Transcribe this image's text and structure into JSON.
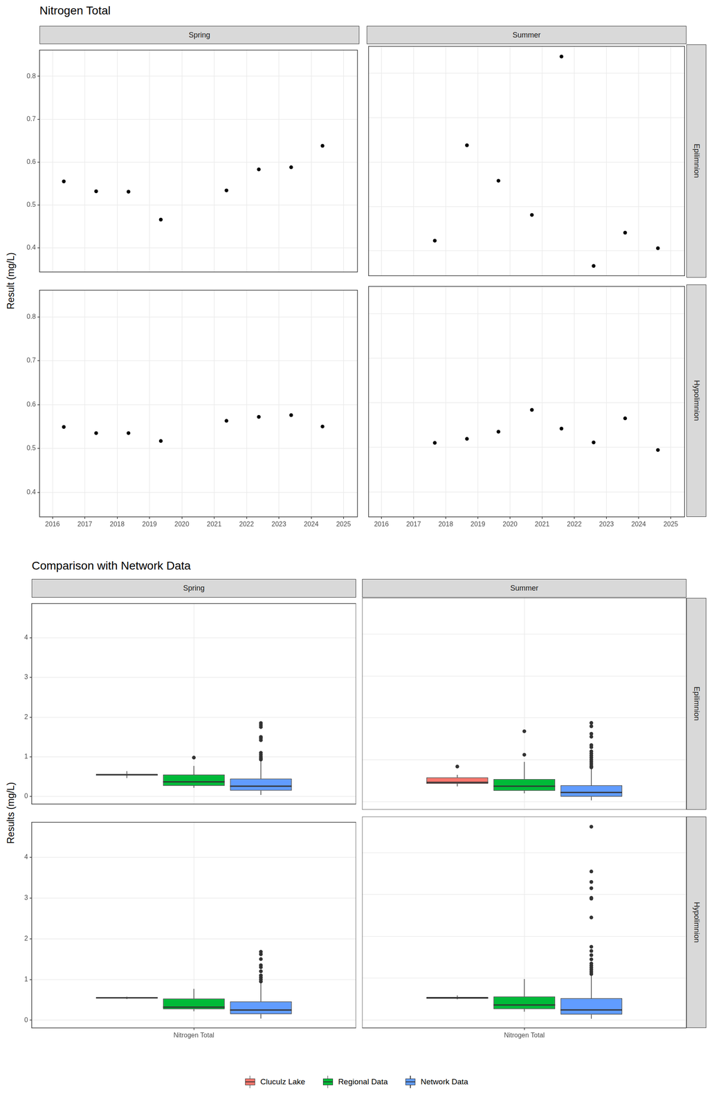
{
  "chart_data": [
    {
      "type": "scatter",
      "title": "Nitrogen Total",
      "ylabel": "Result (mg/L)",
      "columns": [
        "Spring",
        "Summer"
      ],
      "rows": [
        "Epilimnion",
        "Hypolimnion"
      ],
      "color": "#000000",
      "marker": "circle",
      "grid": true,
      "xlim": [
        2015.6,
        2025.43
      ],
      "xticks": [
        2016,
        2017,
        2018,
        2019,
        2020,
        2021,
        2022,
        2023,
        2024,
        2025
      ],
      "ylim": [
        0.344,
        0.861
      ],
      "yticks": [
        0.4,
        0.5,
        0.6,
        0.7,
        0.8
      ],
      "panels": [
        {
          "column": "Spring",
          "row": "Epilimnion",
          "x": [
            2016.35,
            2017.35,
            2018.35,
            2019.35,
            2021.38,
            2022.38,
            2023.38,
            2024.35
          ],
          "values": [
            0.555,
            0.532,
            0.531,
            0.466,
            0.534,
            0.583,
            0.588,
            0.638
          ]
        },
        {
          "column": "Summer",
          "row": "Epilimnion",
          "x": [
            2017.66,
            2018.66,
            2019.64,
            2020.68,
            2021.6,
            2022.6,
            2023.58,
            2024.6
          ],
          "values": [
            0.423,
            0.638,
            0.558,
            0.481,
            0.838,
            0.366,
            0.441,
            0.406
          ]
        },
        {
          "column": "Spring",
          "row": "Hypolimnion",
          "x": [
            2016.35,
            2017.35,
            2018.35,
            2019.35,
            2021.38,
            2022.38,
            2023.38,
            2024.35
          ],
          "values": [
            0.549,
            0.535,
            0.535,
            0.517,
            0.563,
            0.572,
            0.576,
            0.55
          ]
        },
        {
          "column": "Summer",
          "row": "Hypolimnion",
          "x": [
            2017.66,
            2018.66,
            2019.64,
            2020.68,
            2021.6,
            2022.6,
            2023.58,
            2024.6
          ],
          "values": [
            0.51,
            0.519,
            0.535,
            0.584,
            0.542,
            0.511,
            0.565,
            0.494
          ]
        }
      ]
    },
    {
      "type": "box",
      "title": "Comparison with Network Data",
      "ylabel": "Results (mg/L)",
      "columns": [
        "Spring",
        "Summer"
      ],
      "rows": [
        "Epilimnion",
        "Hypolimnion"
      ],
      "categories": [
        "Nitrogen Total"
      ],
      "legend": "bottom",
      "grid": true,
      "series": [
        {
          "name": "Cluculz Lake",
          "color": "#F8766D"
        },
        {
          "name": "Regional Data",
          "color": "#00BA38"
        },
        {
          "name": "Network Data",
          "color": "#619CFF"
        }
      ],
      "ylim": [
        -0.19,
        4.86
      ],
      "yticks": [
        0,
        1,
        2,
        3,
        4
      ],
      "panels": [
        {
          "column": "Spring",
          "row": "Epilimnion",
          "boxes": [
            {
              "q1": 0.53,
              "median": 0.545,
              "q3": 0.57,
              "whisker_low": 0.466,
              "whisker_high": 0.638,
              "outliers": []
            },
            {
              "q1": 0.27,
              "median": 0.37,
              "q3": 0.55,
              "whisker_low": 0.22,
              "whisker_high": 0.77,
              "outliers": [
                0.98
              ]
            },
            {
              "q1": 0.15,
              "median": 0.26,
              "q3": 0.45,
              "whisker_low": 0.04,
              "whisker_high": 0.9,
              "outliers": [
                0.93,
                0.96,
                1.0,
                1.05,
                1.1,
                1.42,
                1.47,
                1.5,
                1.75,
                1.8,
                1.85
              ]
            }
          ]
        },
        {
          "column": "Summer",
          "row": "Epilimnion",
          "boxes": [
            {
              "q1": 0.43,
              "median": 0.46,
              "q3": 0.58,
              "whisker_low": 0.366,
              "whisker_high": 0.64,
              "outliers": [
                0.838
              ]
            },
            {
              "q1": 0.26,
              "median": 0.37,
              "q3": 0.54,
              "whisker_low": 0.2,
              "whisker_high": 0.95,
              "outliers": [
                1.12,
                1.68
              ]
            },
            {
              "q1": 0.12,
              "median": 0.22,
              "q3": 0.39,
              "whisker_low": 0.03,
              "whisker_high": 0.8,
              "outliers": [
                0.82,
                0.85,
                0.9,
                0.95,
                1.0,
                1.05,
                1.1,
                1.15,
                1.2,
                1.3,
                1.35,
                1.55,
                1.62,
                1.8,
                1.88
              ]
            }
          ]
        },
        {
          "column": "Spring",
          "row": "Hypolimnion",
          "boxes": [
            {
              "q1": 0.535,
              "median": 0.549,
              "q3": 0.566,
              "whisker_low": 0.517,
              "whisker_high": 0.576,
              "outliers": []
            },
            {
              "q1": 0.27,
              "median": 0.32,
              "q3": 0.53,
              "whisker_low": 0.22,
              "whisker_high": 0.77,
              "outliers": []
            },
            {
              "q1": 0.15,
              "median": 0.25,
              "q3": 0.46,
              "whisker_low": 0.04,
              "whisker_high": 0.92,
              "outliers": [
                0.95,
                1.0,
                1.05,
                1.1,
                1.2,
                1.3,
                1.35,
                1.5,
                1.62,
                1.68
              ]
            }
          ]
        },
        {
          "column": "Summer",
          "row": "Hypolimnion",
          "boxes": [
            {
              "q1": 0.511,
              "median": 0.526,
              "q3": 0.55,
              "whisker_low": 0.494,
              "whisker_high": 0.584,
              "outliers": []
            },
            {
              "q1": 0.26,
              "median": 0.36,
              "q3": 0.56,
              "whisker_low": 0.2,
              "whisker_high": 0.98,
              "outliers": []
            },
            {
              "q1": 0.13,
              "median": 0.24,
              "q3": 0.52,
              "whisker_low": 0.03,
              "whisker_high": 1.08,
              "outliers": [
                1.1,
                1.15,
                1.2,
                1.25,
                1.3,
                1.35,
                1.45,
                1.55,
                1.65,
                1.75,
                2.45,
                2.9,
                2.92,
                3.15,
                3.3,
                3.55,
                4.62
              ]
            }
          ]
        }
      ]
    }
  ]
}
